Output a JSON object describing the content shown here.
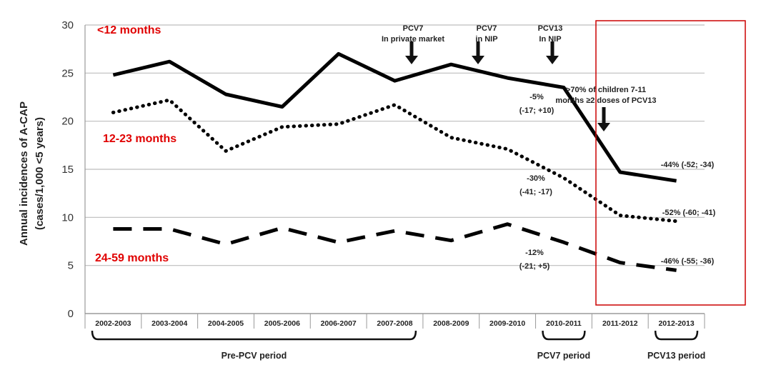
{
  "chart_data": {
    "type": "line",
    "ylabel": [
      "Annual incidences of A-CAP",
      "(cases/1,000 <5 years)"
    ],
    "ylim": [
      0,
      30
    ],
    "yticks": [
      0,
      5,
      10,
      15,
      20,
      25,
      30
    ],
    "grid": true,
    "categories": [
      "2002-2003",
      "2003-2004",
      "2004-2005",
      "2005-2006",
      "2006-2007",
      "2007-2008",
      "2008-2009",
      "2009-2010",
      "2010-2011",
      "2011-2012",
      "2012-2013"
    ],
    "series": [
      {
        "name": "<12 months",
        "style": "solid",
        "color": "#000000",
        "values": [
          24.8,
          26.2,
          22.8,
          21.5,
          27.0,
          24.2,
          25.9,
          24.5,
          23.5,
          14.7,
          13.8
        ]
      },
      {
        "name": "12-23 months",
        "style": "dotted",
        "color": "#000000",
        "values": [
          20.9,
          22.2,
          16.9,
          19.4,
          19.7,
          21.7,
          18.3,
          17.1,
          14.1,
          10.2,
          9.6
        ]
      },
      {
        "name": "24-59 months",
        "style": "dashed",
        "color": "#000000",
        "values": [
          8.8,
          8.8,
          7.2,
          8.9,
          7.4,
          8.6,
          7.6,
          9.3,
          7.4,
          5.3,
          4.5
        ]
      }
    ],
    "series_label_color": "#e00000",
    "arrows": [
      {
        "lines": [
          "PCV7",
          "In private market"
        ],
        "x": 5.5
      },
      {
        "lines": [
          "PCV7",
          "in NIP"
        ],
        "x": 6.5
      },
      {
        "lines": [
          "PCV13",
          "In NIP"
        ],
        "x": 7.5
      },
      {
        "lines": [
          ">70% of children 7-11",
          "months ≥2 doses of PCV13"
        ],
        "x": 8.5
      }
    ],
    "change_annotations": [
      {
        "lines": [
          "-5%",
          "(-17; +10)"
        ]
      },
      {
        "lines": [
          "-30%",
          "(-41; -17)"
        ]
      },
      {
        "lines": [
          "-12%",
          "(-21; +5)"
        ]
      },
      {
        "lines": [
          "-44% (-52; -34)"
        ]
      },
      {
        "lines": [
          "-52% (-60; -41)"
        ]
      },
      {
        "lines": [
          "-46% (-55; -36)"
        ]
      }
    ],
    "periods": [
      {
        "label": "Pre-PCV period",
        "from": 0,
        "to": 5
      },
      {
        "label": "PCV7 period",
        "from": 8,
        "to": 8
      },
      {
        "label": "PCV13 period",
        "from": 10,
        "to": 10
      }
    ],
    "highlight_box_color": "#cc0000"
  }
}
